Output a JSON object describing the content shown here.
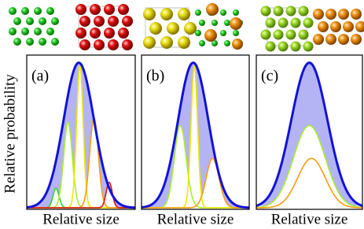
{
  "chart_data": {
    "type": "gaussian-panels",
    "ylabel": "Relative probability",
    "panels": [
      {
        "label": "(a)",
        "xlabel": "Relative size",
        "envelope": {
          "mean": 0.48,
          "sigma": 0.14,
          "height": 0.97,
          "color": "#1212d8"
        },
        "components": [
          {
            "mean": 0.27,
            "sigma": 0.028,
            "height": 0.13,
            "color": "#2ad62a"
          },
          {
            "mean": 0.38,
            "sigma": 0.04,
            "height": 0.57,
            "color": "#a8ee30"
          },
          {
            "mean": 0.49,
            "sigma": 0.03,
            "height": 0.95,
            "color": "#f0e800"
          },
          {
            "mean": 0.62,
            "sigma": 0.04,
            "height": 0.6,
            "color": "#ff9a10"
          },
          {
            "mean": 0.76,
            "sigma": 0.028,
            "height": 0.17,
            "color": "#dd1010"
          }
        ]
      },
      {
        "label": "(b)",
        "xlabel": "Relative size",
        "envelope": {
          "mean": 0.48,
          "sigma": 0.14,
          "height": 0.97,
          "color": "#1212d8"
        },
        "components": [
          {
            "mean": 0.36,
            "sigma": 0.055,
            "height": 0.55,
            "color": "#a8ee30"
          },
          {
            "mean": 0.49,
            "sigma": 0.03,
            "height": 0.95,
            "color": "#f0e800"
          },
          {
            "mean": 0.66,
            "sigma": 0.06,
            "height": 0.33,
            "color": "#ff9a10"
          }
        ]
      },
      {
        "label": "(c)",
        "xlabel": "Relative size",
        "envelope": {
          "mean": 0.5,
          "sigma": 0.17,
          "height": 0.97,
          "color": "#1212d8"
        },
        "components": [
          {
            "mean": 0.5,
            "sigma": 0.15,
            "height": 0.55,
            "color": "#a8ee30"
          },
          {
            "mean": 0.52,
            "sigma": 0.13,
            "height": 0.33,
            "color": "#ff9a10"
          }
        ]
      }
    ]
  }
}
